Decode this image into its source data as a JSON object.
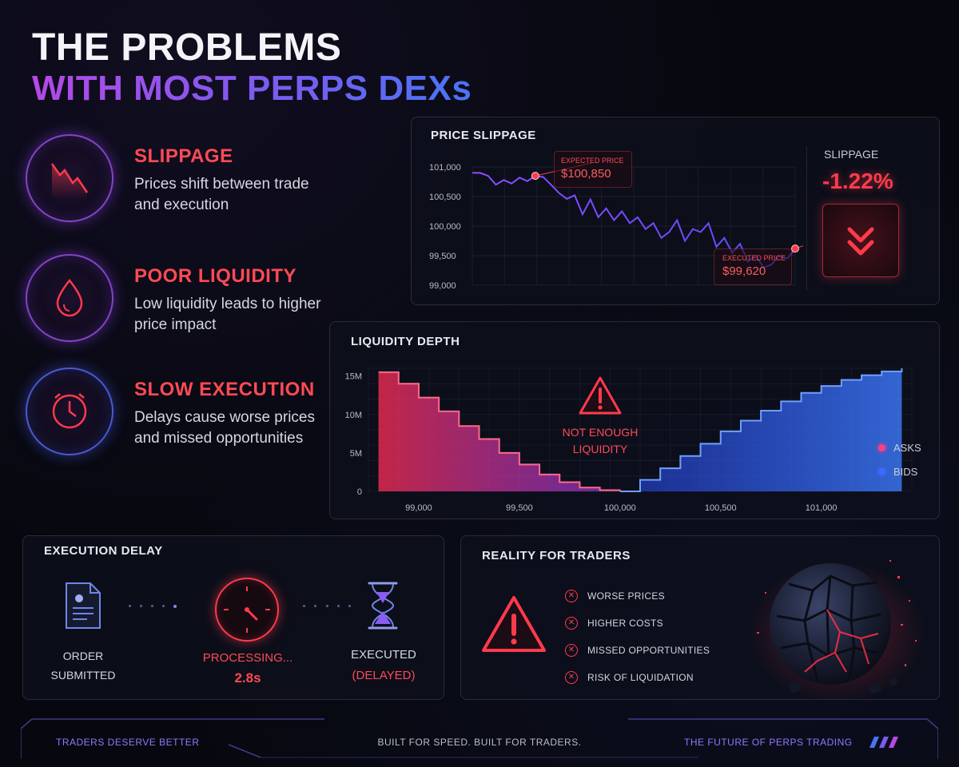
{
  "title": {
    "line1": "THE PROBLEMS",
    "line2": "WITH MOST PERPS DEXs"
  },
  "problems": [
    {
      "icon": "falling-chart-icon",
      "title": "SLIPPAGE",
      "desc": "Prices shift between trade and execution"
    },
    {
      "icon": "droplet-icon",
      "title": "POOR LIQUIDITY",
      "desc": "Low liquidity leads to higher price impact"
    },
    {
      "icon": "clock-icon",
      "title": "SLOW EXECUTION",
      "desc": "Delays cause worse prices and missed opportunities"
    }
  ],
  "price_slippage": {
    "title": "PRICE SLIPPAGE",
    "expected_label": "EXPECTED PRICE",
    "expected_value": "$100,850",
    "executed_label": "EXECUTED PRICE",
    "executed_value": "$99,620",
    "slippage_label": "SLIPPAGE",
    "slippage_value": "-1.22%"
  },
  "liquidity_depth": {
    "title": "LIQUIDITY DEPTH",
    "warning": "NOT ENOUGH LIQUIDITY",
    "asks_label": "ASKS",
    "bids_label": "BIDS"
  },
  "execution_delay": {
    "title": "EXECUTION DELAY",
    "step1": "ORDER SUBMITTED",
    "step2": "PROCESSING...",
    "step2_time": "2.8s",
    "step3": "EXECUTED",
    "step3_note": "(DELAYED)"
  },
  "reality": {
    "title": "REALITY FOR TRADERS",
    "items": [
      "WORSE PRICES",
      "HIGHER COSTS",
      "MISSED OPPORTUNITIES",
      "RISK OF LIQUIDATION"
    ]
  },
  "footer": {
    "left": "TRADERS DESERVE BETTER",
    "center": "BUILT FOR SPEED. BUILT FOR TRADERS.",
    "right": "THE FUTURE OF PERPS TRADING"
  },
  "colors": {
    "red": "#ff3b4b",
    "purple": "#9b4cff",
    "blue": "#3d6bff"
  },
  "chart_data": [
    {
      "type": "line",
      "title": "PRICE SLIPPAGE",
      "y_ticks": [
        "101,000",
        "100,500",
        "100,000",
        "99,500",
        "99,000"
      ],
      "ylim": [
        99000,
        101000
      ],
      "values": [
        100900,
        100900,
        100850,
        100700,
        100780,
        100720,
        100820,
        100760,
        100850,
        100830,
        100700,
        100560,
        100460,
        100520,
        100200,
        100450,
        100150,
        100300,
        100100,
        100250,
        100050,
        100150,
        99950,
        100050,
        99800,
        99900,
        100100,
        99750,
        99950,
        99900,
        100050,
        99650,
        99800,
        99550,
        99700,
        99400,
        99500,
        99300,
        99350,
        99500,
        99450,
        99620
      ]
    },
    {
      "type": "area",
      "title": "LIQUIDITY DEPTH",
      "x_ticks": [
        "99,000",
        "99,500",
        "100,000",
        "100,500",
        "101,000"
      ],
      "y_ticks": [
        "15M",
        "10M",
        "5M",
        "0"
      ],
      "ylim": [
        0,
        16000000
      ],
      "series": [
        {
          "name": "ASKS",
          "x": [
            98800,
            98900,
            99000,
            99100,
            99200,
            99300,
            99400,
            99500,
            99600,
            99700,
            99800,
            99900,
            100000
          ],
          "values": [
            15500000,
            14000000,
            12200000,
            10400000,
            8500000,
            6800000,
            5000000,
            3500000,
            2200000,
            1200000,
            500000,
            150000,
            0
          ]
        },
        {
          "name": "BIDS",
          "x": [
            100000,
            100100,
            100200,
            100300,
            100400,
            100500,
            100600,
            100700,
            100800,
            100900,
            101000,
            101100,
            101200,
            101300,
            101400
          ],
          "values": [
            0,
            1500000,
            3000000,
            4600000,
            6200000,
            7800000,
            9200000,
            10500000,
            11700000,
            12800000,
            13700000,
            14500000,
            15100000,
            15600000,
            16000000
          ]
        }
      ]
    }
  ]
}
